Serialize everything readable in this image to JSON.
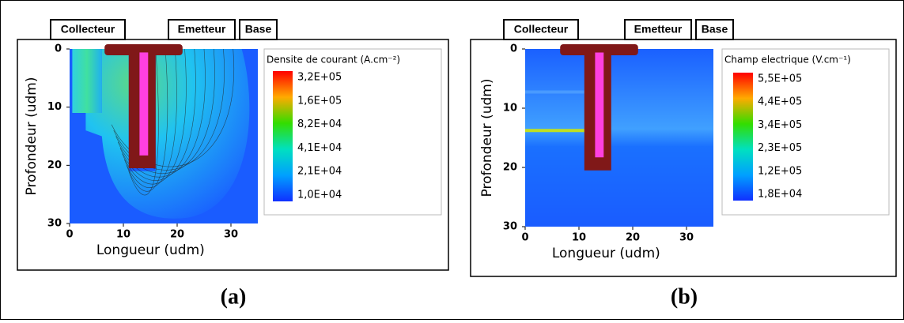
{
  "panels": [
    {
      "tags": [
        "Collecteur",
        "Emetteur",
        "Base"
      ],
      "xlabel": "Longueur (udm)",
      "ylabel": "Profondeur (udm)",
      "xlim": [
        0,
        35
      ],
      "xticks": [
        0,
        10,
        20,
        30
      ],
      "ylim": [
        0,
        30
      ],
      "yticks": [
        0,
        10,
        20,
        30
      ],
      "colorbar": {
        "title": "Densite de courant (A.cm⁻²)",
        "labels": [
          "3,2E+05",
          "1,6E+05",
          "8,2E+04",
          "4,1E+04",
          "2,1E+04",
          "1,0E+04"
        ]
      },
      "caption": "(a)"
    },
    {
      "tags": [
        "Collecteur",
        "Emetteur",
        "Base"
      ],
      "xlabel": "Longueur (udm)",
      "ylabel": "Profondeur (udm)",
      "xlim": [
        0,
        35
      ],
      "xticks": [
        0,
        10,
        20,
        30
      ],
      "ylim": [
        0,
        30
      ],
      "yticks": [
        0,
        10,
        20,
        30
      ],
      "colorbar": {
        "title": "Champ electrique (V.cm⁻¹)",
        "labels": [
          "5,5E+05",
          "4,4E+05",
          "3,4E+05",
          "2,3E+05",
          "1,2E+05",
          "1,8E+04"
        ]
      },
      "caption": "(b)"
    }
  ]
}
